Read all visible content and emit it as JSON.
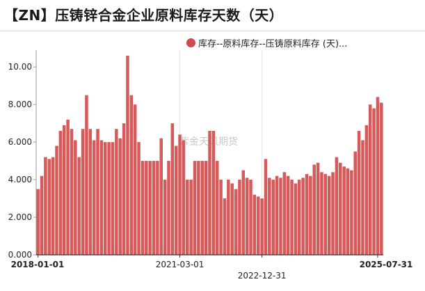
{
  "header": {
    "title": "【ZN】压铸锌合金企业原料库存天数（天）"
  },
  "legend": {
    "label": "库存--原料库存--压铸原料库存 (天)...",
    "color": "#d14a4a"
  },
  "watermark": "紫金天风期货",
  "chart_data": {
    "type": "bar",
    "title": "【ZN】压铸锌合金企业原料库存天数（天）",
    "ylim": [
      0,
      10.6
    ],
    "yticks": [
      "0.000",
      "2.000",
      "4.000",
      "6.000",
      "8.000",
      "10.00"
    ],
    "ytick_values": [
      0,
      2,
      4,
      6,
      8,
      10
    ],
    "xticks": [
      {
        "label": "2018-01-01",
        "index": 0,
        "bold": true
      },
      {
        "label": "2021-03-01",
        "index": 38,
        "bold": false
      },
      {
        "label": "2022-12-31",
        "index": 60,
        "bold": false
      },
      {
        "label": "2025-07-31",
        "index": 91,
        "bold": true
      }
    ],
    "bar_color": "#d65a5a",
    "series": [
      {
        "name": "库存--原料库存--压铸原料库存 (天)...",
        "values": [
          3.5,
          4.2,
          5.2,
          5.1,
          5.2,
          5.8,
          6.6,
          6.9,
          7.2,
          6.7,
          6.1,
          5.2,
          6.7,
          8.5,
          6.7,
          6.1,
          6.7,
          6.1,
          6.0,
          6.0,
          6.0,
          6.7,
          6.2,
          7.0,
          10.6,
          8.5,
          8.0,
          6.0,
          5.0,
          5.0,
          5.0,
          5.0,
          5.0,
          6.2,
          4.0,
          5.0,
          7.0,
          5.8,
          6.4,
          6.1,
          4.0,
          4.0,
          5.0,
          5.0,
          5.0,
          5.0,
          6.6,
          6.6,
          5.0,
          4.0,
          3.0,
          4.0,
          3.8,
          3.5,
          4.0,
          4.5,
          4.1,
          4.0,
          3.2,
          3.1,
          3.0,
          5.1,
          4.1,
          4.0,
          4.2,
          4.1,
          4.4,
          4.2,
          4.0,
          3.8,
          4.0,
          4.1,
          4.3,
          4.2,
          4.8,
          4.9,
          4.4,
          4.3,
          4.2,
          4.4,
          5.2,
          4.9,
          4.7,
          4.6,
          4.5,
          5.5,
          6.6,
          6.1,
          6.9,
          8.0,
          7.8,
          8.4,
          8.1
        ]
      }
    ]
  }
}
